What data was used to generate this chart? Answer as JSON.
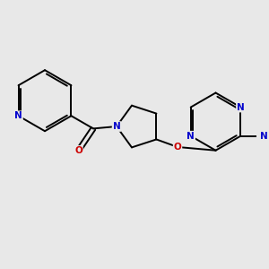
{
  "bg_color": "#e8e8e8",
  "atom_color_N": "#0000cc",
  "atom_color_O": "#cc0000",
  "atom_color_C": "#000000",
  "bond_color": "#000000",
  "bond_width": 1.4,
  "font_size_atom": 7.5,
  "fig_width": 3.0,
  "fig_height": 3.0,
  "dpi": 100,
  "xlim": [
    -2.8,
    3.2
  ],
  "ylim": [
    -1.6,
    2.2
  ]
}
